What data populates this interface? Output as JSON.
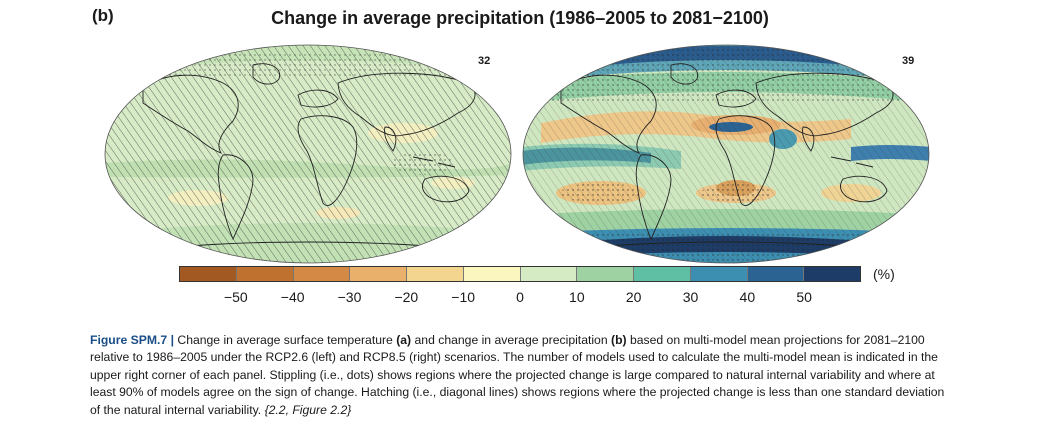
{
  "panel_label": "(b)",
  "title": "Change in average precipitation (1986–2005 to 2081−2100)",
  "panels": [
    {
      "scenario": "RCP2.6",
      "model_count": "32"
    },
    {
      "scenario": "RCP8.5",
      "model_count": "39"
    }
  ],
  "colorbar": {
    "unit": "(%)",
    "ticks": [
      "−50",
      "−40",
      "−30",
      "−20",
      "−10",
      "0",
      "10",
      "20",
      "30",
      "40",
      "50"
    ],
    "tick_values": [
      -50,
      -40,
      -30,
      -20,
      -10,
      0,
      10,
      20,
      30,
      40,
      50
    ],
    "range": [
      -60,
      60
    ],
    "colors": [
      "#a35a22",
      "#bf7130",
      "#d48a45",
      "#e9b06b",
      "#f3d58f",
      "#fbf5c0",
      "#d5ebc4",
      "#9fd2a3",
      "#5fbfa5",
      "#3d8fb2",
      "#2b6393",
      "#1d3c67"
    ]
  },
  "caption": {
    "figure_label": "Figure SPM.7 |",
    "part1": " Change in average surface temperature ",
    "a": "(a)",
    "part2": " and change in average precipitation ",
    "b": "(b)",
    "part3": " based on multi-model mean projections for 2081–2100 relative to 1986–2005 under the RCP2.6 (left) and RCP8.5 (right) scenarios. The number of models used to calculate the multi-model mean is indicated in the upper right corner of each panel. Stippling (i.e., dots) shows regions where the projected change is large compared to natural internal variability and where at least 90% of models agree on the sign of change. Hatching (i.e., diagonal lines) shows regions where the projected change is less than one standard deviation of the natural internal variability. ",
    "ref": "{2.2, Figure 2.2}"
  }
}
